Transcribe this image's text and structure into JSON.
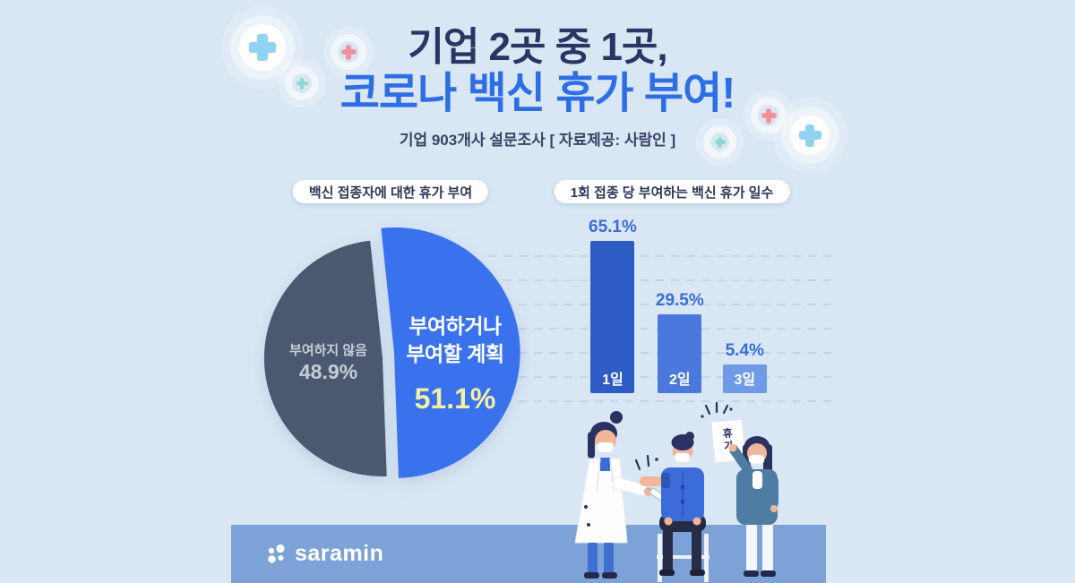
{
  "page": {
    "background": "#d9e7f4"
  },
  "header": {
    "title_line1": "기업 2곳 중 1곳,",
    "title_line2": "코로나 백신 휴가 부여!",
    "subtitle": "기업 903개사 설문조사 [ 자료제공: 사람인 ]",
    "title_line1_color": "#2b3563",
    "title_line2_color": "#2d6ee4"
  },
  "chart_data": [
    {
      "type": "pie",
      "title": "백신 접종자에 대한 휴가 부여",
      "unit": "%",
      "slices": [
        {
          "label": "부여하거나 부여할 계획",
          "label_lines": [
            "부여하거나",
            "부여할 계획"
          ],
          "value": 51.1,
          "value_display": "51.1%",
          "color": "#3a72ee",
          "exploded": true,
          "label_color": "#ffffff",
          "value_color": "#f5efa0"
        },
        {
          "label": "부여하지 않음",
          "label_lines": [
            "부여하지 않음"
          ],
          "value": 48.9,
          "value_display": "48.9%",
          "color": "#4c5870",
          "exploded": false,
          "label_color": "#c5ced8",
          "value_color": "#c5ced8"
        }
      ]
    },
    {
      "type": "bar",
      "title": "1회 접종 당 부여하는 백신 휴가 일수",
      "unit": "%",
      "categories": [
        "1일",
        "2일",
        "3일"
      ],
      "values": [
        65.1,
        29.5,
        5.4
      ],
      "values_display": [
        "65.1%",
        "29.5%",
        "5.4%"
      ],
      "bar_colors": [
        "#2e5cc5",
        "#4a78dc",
        "#6f9ae7"
      ],
      "value_label_color": "#3a6bd8",
      "grid": "dashed-horizontal",
      "gridline_count": 7,
      "ylim": [
        0,
        70
      ],
      "legend": "none"
    }
  ],
  "footer": {
    "brand": "saramin",
    "strip_color": "#7ca2d7"
  },
  "illustration": {
    "paper_text": "휴가"
  },
  "deco_colors": {
    "blue_cross": "#8fd2f2",
    "pink_cross": "#f2919e",
    "mint_cross": "#8fd8cf"
  }
}
